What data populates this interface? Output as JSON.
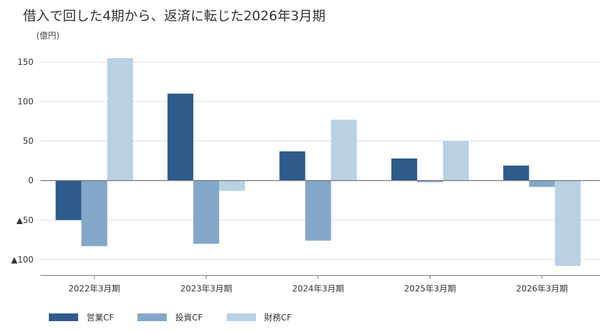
{
  "title": "借入で回した4期から、返済に転じた2026年3月期",
  "unit_label": "(億円)",
  "colors": {
    "operating": "#2d5c8a",
    "investing": "#82a7c9",
    "financing": "#bad1e3",
    "grid": "#dddddd",
    "axis": "#777777"
  },
  "chart_data": {
    "type": "bar",
    "title": "借入で回した4期から、返済に転じた2026年3月期",
    "ylabel": "(億円)",
    "xlabel": "",
    "categories": [
      "2022年3月期",
      "2023年3月期",
      "2024年3月期",
      "2025年3月期",
      "2026年3月期"
    ],
    "series": [
      {
        "name": "営業CF",
        "values": [
          -50,
          110,
          37,
          28,
          19
        ]
      },
      {
        "name": "投資CF",
        "values": [
          -83,
          -80,
          -76,
          -2,
          -8
        ]
      },
      {
        "name": "財務CF",
        "values": [
          155,
          -13,
          77,
          50,
          -108
        ]
      }
    ],
    "ylim": [
      -120,
      160
    ],
    "yticks": [
      150,
      100,
      50,
      0,
      -50,
      -100
    ],
    "ytick_labels": [
      "150",
      "100",
      "50",
      "0",
      "▲50",
      "▲100"
    ],
    "grid": true,
    "legend_position": "bottom-left"
  }
}
